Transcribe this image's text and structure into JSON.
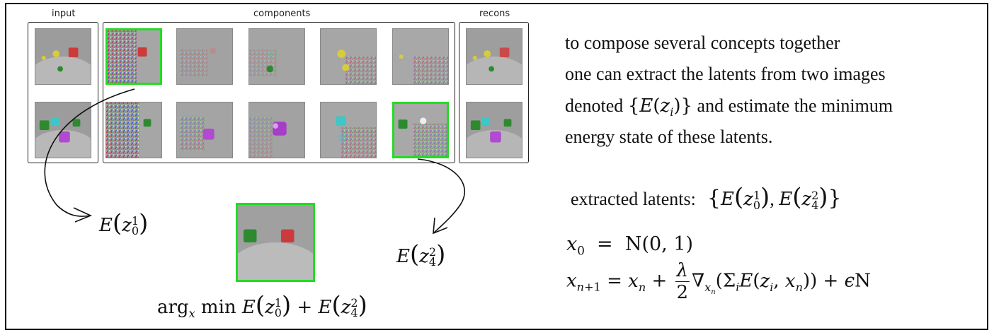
{
  "labels": {
    "input": "input",
    "components": "components",
    "recons": "recons"
  },
  "thumbs": {
    "row1": [
      "input",
      "component-1",
      "component-2",
      "component-3",
      "component-4",
      "component-5",
      "recon"
    ],
    "row2": [
      "input",
      "component-1",
      "component-2",
      "component-3",
      "component-4",
      "component-5",
      "recon"
    ]
  },
  "description": [
    "to compose several concepts together",
    "one can extract the latents from two images",
    "denoted",
    "and estimate the minimum",
    "energy state of these latents."
  ],
  "math": {
    "latent_set": "{E(z_i)}",
    "extracted_label": "extracted latents:",
    "left_latent": "E(z_0^1)",
    "right_latent": "E(z_4^2)",
    "argmin": "arg_x min E(z_0^1) + E(z_4^2)",
    "x0_eq": "x_0 = N(0, 1)",
    "update_eq": "x_{n+1} = x_n + λ/2 ∇_{x_n}(Σ_i E(z_i, x_n)) + ϵN"
  },
  "colors": {
    "highlight": "#22dd22",
    "red_cube": "#cc3b3b",
    "green_cube": "#2e8a2e",
    "yellow_cube": "#d8cc3a",
    "cyan_cube": "#3fc6c6",
    "purple_cube": "#b04ad0"
  }
}
